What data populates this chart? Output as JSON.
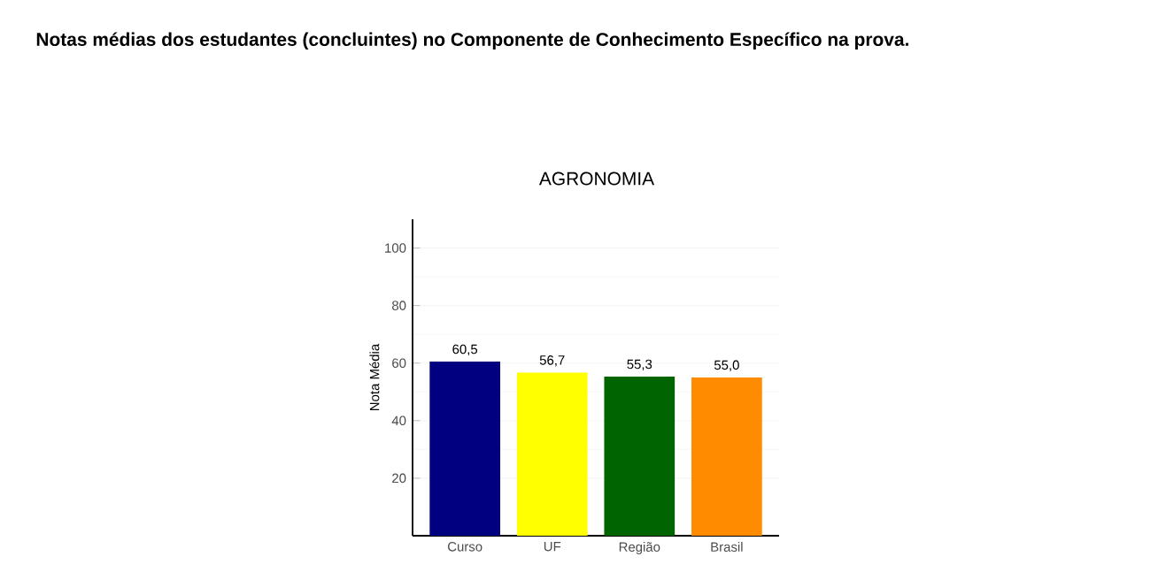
{
  "chart_data": {
    "type": "bar",
    "title": "Notas médias dos estudantes (concluintes) no Componente de Conhecimento Específico na prova.",
    "subtitle": "AGRONOMIA",
    "ylabel": "Nota Média",
    "categories": [
      "Curso",
      "UF",
      "Região",
      "Brasil"
    ],
    "values": [
      60.5,
      56.7,
      55.3,
      55.0
    ],
    "value_labels": [
      "60,5",
      "56,7",
      "55,3",
      "55,0"
    ],
    "colors": [
      "#000080",
      "#ffff00",
      "#006400",
      "#ff8c00"
    ],
    "ylim": [
      0,
      110
    ],
    "yticks": [
      20,
      40,
      60,
      80,
      100
    ],
    "grid": "y"
  }
}
